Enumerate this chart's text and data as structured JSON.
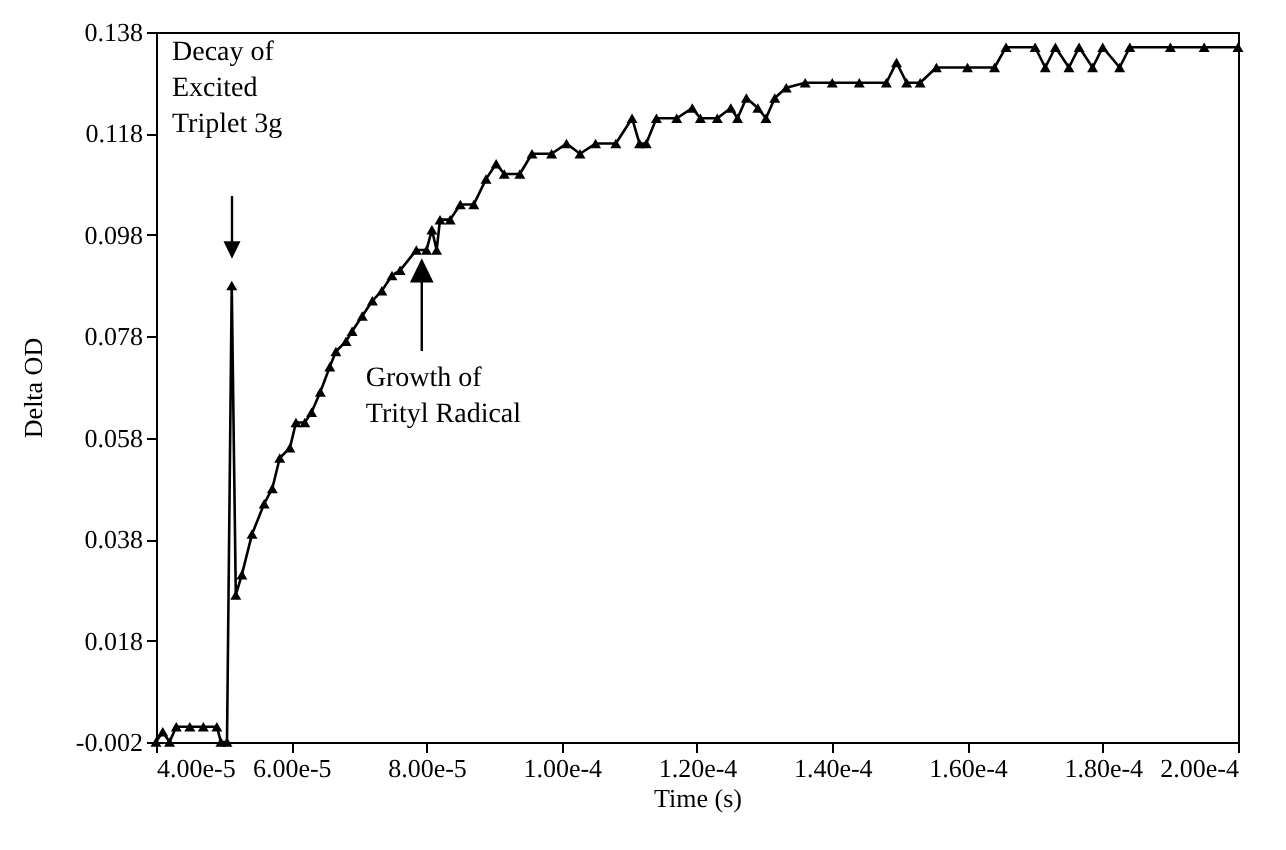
{
  "chart_data": {
    "type": "line",
    "xlabel": "Time (s)",
    "ylabel": "Delta OD",
    "x": [
      4e-05,
      4.1e-05,
      4.2e-05,
      4.3e-05,
      4.5e-05,
      4.7e-05,
      4.9e-05,
      4.96e-05,
      5.05e-05,
      5.12e-05,
      5.18e-05,
      5.27e-05,
      5.42e-05,
      5.6e-05,
      5.72e-05,
      5.83e-05,
      5.98e-05,
      6.07e-05,
      6.2e-05,
      6.3e-05,
      6.43e-05,
      6.57e-05,
      6.66e-05,
      6.81e-05,
      6.9e-05,
      7.05e-05,
      7.2e-05,
      7.34e-05,
      7.49e-05,
      7.61e-05,
      7.85e-05,
      8e-05,
      8.08e-05,
      8.15e-05,
      8.2e-05,
      8.35e-05,
      8.5e-05,
      8.7e-05,
      8.88e-05,
      9.03e-05,
      9.15e-05,
      9.38e-05,
      9.56e-05,
      9.85e-05,
      0.0001007,
      0.0001027,
      0.000105,
      0.000108,
      0.0001104,
      0.0001115,
      0.0001125,
      0.000114,
      0.000117,
      0.0001193,
      0.0001205,
      0.000123,
      0.000125,
      0.000126,
      0.0001273,
      0.000129,
      0.0001302,
      0.0001315,
      0.0001332,
      0.000136,
      0.00014,
      0.000144,
      0.000148,
      0.0001495,
      0.000151,
      0.000153,
      0.0001554,
      0.00016,
      0.000164,
      0.0001657,
      0.00017,
      0.0001715,
      0.000173,
      0.000175,
      0.0001765,
      0.0001785,
      0.00018,
      0.0001825,
      0.000184,
      0.00019,
      0.000195,
      0.0002
    ],
    "series": [
      {
        "color": "#000000",
        "values": [
          -0.002,
          0.0,
          -0.002,
          0.001,
          0.001,
          0.001,
          0.001,
          -0.002,
          -0.002,
          0.088,
          0.027,
          0.031,
          0.039,
          0.045,
          0.048,
          0.054,
          0.056,
          0.061,
          0.061,
          0.063,
          0.067,
          0.072,
          0.075,
          0.077,
          0.079,
          0.082,
          0.085,
          0.087,
          0.09,
          0.091,
          0.095,
          0.095,
          0.099,
          0.095,
          0.101,
          0.101,
          0.104,
          0.104,
          0.109,
          0.112,
          0.11,
          0.11,
          0.114,
          0.114,
          0.116,
          0.114,
          0.116,
          0.116,
          0.121,
          0.116,
          0.116,
          0.121,
          0.121,
          0.123,
          0.121,
          0.121,
          0.123,
          0.121,
          0.125,
          0.123,
          0.121,
          0.125,
          0.127,
          0.128,
          0.128,
          0.128,
          0.128,
          0.132,
          0.128,
          0.128,
          0.131,
          0.131,
          0.131,
          0.135,
          0.135,
          0.131,
          0.135,
          0.131,
          0.135,
          0.131,
          0.135,
          0.131,
          0.135,
          0.135,
          0.135,
          0.135
        ]
      }
    ],
    "xlim": [
      4e-05,
      0.0002
    ],
    "xticks": [
      {
        "value": 4e-05,
        "label": "4.00e-5"
      },
      {
        "value": 6e-05,
        "label": "6.00e-5"
      },
      {
        "value": 8e-05,
        "label": "8.00e-5"
      },
      {
        "value": 0.0001,
        "label": "1.00e-4"
      },
      {
        "value": 0.00012,
        "label": "1.20e-4"
      },
      {
        "value": 0.00014,
        "label": "1.40e-4"
      },
      {
        "value": 0.00016,
        "label": "1.60e-4"
      },
      {
        "value": 0.00018,
        "label": "1.80e-4"
      },
      {
        "value": 0.0002,
        "label": "2.00e-4"
      }
    ],
    "ylim": [
      -0.002,
      0.138
    ],
    "yticks": [
      -0.002,
      0.018,
      0.038,
      0.058,
      0.078,
      0.098,
      0.118,
      0.138
    ],
    "marker": "triangle",
    "line_style": "solid",
    "grid": false,
    "annotations": [
      "Decay of\nExcited\nTriplet 3g",
      {
        "text": "Growth of\nTrityl Radical",
        "x": 7.93e-05,
        "y": 0.095
      }
    ]
  }
}
